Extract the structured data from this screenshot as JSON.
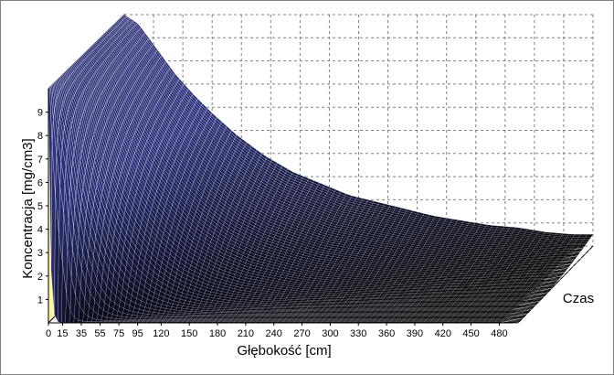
{
  "chart_data": {
    "type": "surface-3d",
    "title": "",
    "xlabel": "Głębokość [cm]",
    "ylabel": "Koncentracja [mg/cm3]",
    "zlabel": "Czas",
    "x_tick_labels": [
      "0",
      "15",
      "35",
      "55",
      "75",
      "95",
      "120",
      "150",
      "180",
      "210",
      "240",
      "270",
      "300",
      "330",
      "360",
      "390",
      "420",
      "450",
      "480"
    ],
    "x_range": [
      0,
      500
    ],
    "y_tick_labels": [
      "1",
      "2",
      "3",
      "4",
      "5",
      "6",
      "7",
      "8",
      "9"
    ],
    "y_range": [
      0,
      10
    ],
    "grid": true,
    "surface": {
      "description_model": "concentration decays with depth; front (earliest time) edge stays ~0, back (latest time) edge decays from ~10",
      "back_edge": {
        "x": [
          0,
          15,
          35,
          55,
          75,
          95,
          120,
          150,
          180,
          210,
          240,
          270,
          300,
          330,
          360,
          390,
          420,
          450,
          480,
          500
        ],
        "y": [
          10.0,
          9.6,
          8.5,
          7.4,
          6.5,
          5.7,
          4.8,
          3.9,
          3.2,
          2.7,
          2.2,
          1.9,
          1.6,
          1.3,
          1.1,
          0.9,
          0.8,
          0.6,
          0.5,
          0.5
        ]
      },
      "surface_value_at_depth_0": 10,
      "colors": {
        "low": "#000000",
        "high": "#2a2f78",
        "highlight": "#ffffff",
        "wall": "#fff7a0",
        "grid": "#808080"
      }
    }
  }
}
